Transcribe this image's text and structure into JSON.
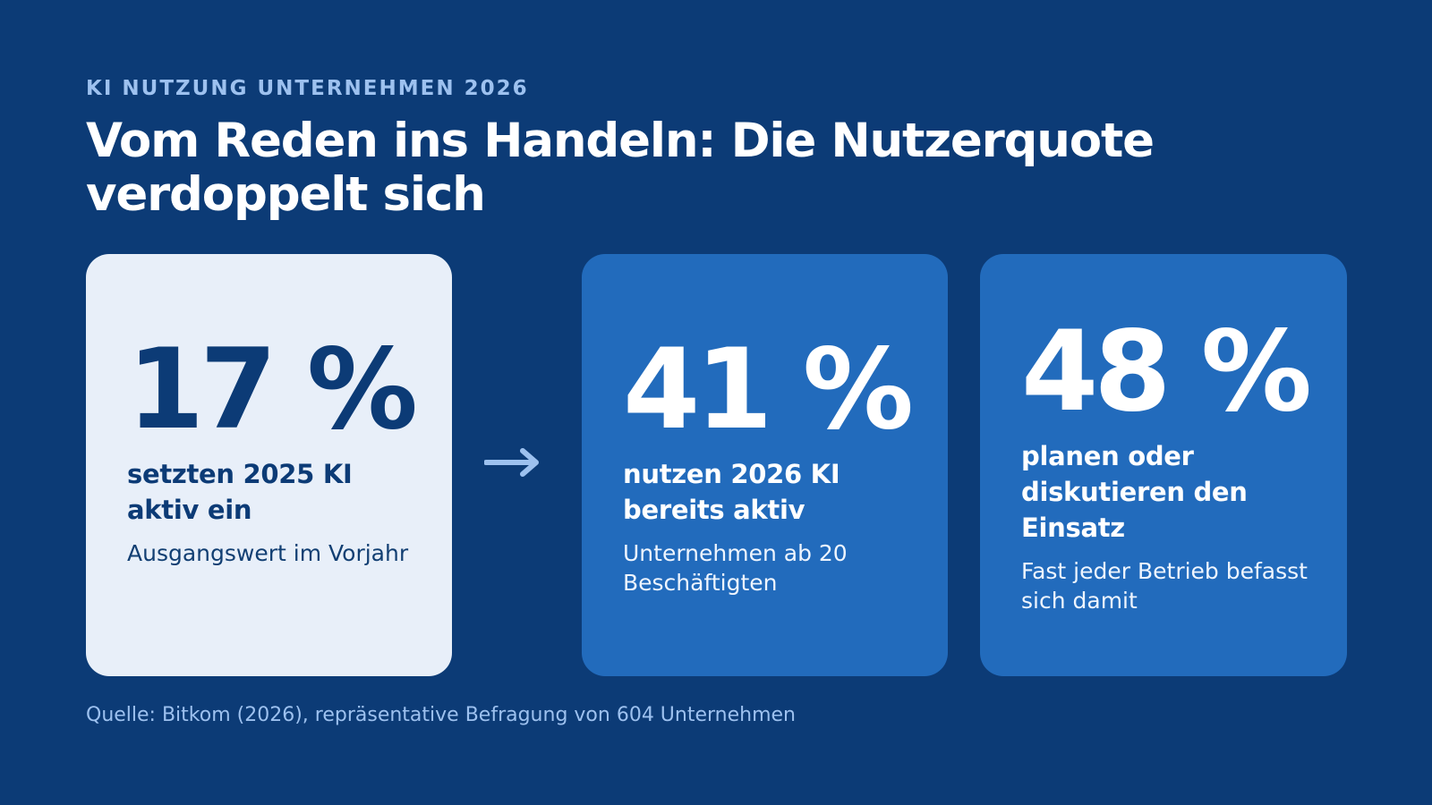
{
  "header": {
    "eyebrow": "KI NUTZUNG UNTERNEHMEN 2026",
    "title_line_1": "Vom Reden ins Handeln: Die Nutzerquote",
    "title_line_2": "verdoppelt sich"
  },
  "cards": [
    {
      "value": "17 %",
      "label": "setzten 2025 KI aktiv ein",
      "note": "Ausgangswert im Vorjahr"
    },
    {
      "value": "41 %",
      "label": "nutzen 2026 KI bereits aktiv",
      "note": "Unternehmen ab 20 Beschäftigten"
    },
    {
      "value": "48 %",
      "label": "planen oder diskutieren den Einsatz",
      "note": "Fast jeder Betrieb befasst sich damit"
    }
  ],
  "source": "Quelle: Bitkom (2026), repräsentative Befragung von 604 Unternehmen",
  "colors": {
    "background": "#0c3b76",
    "accent": "#9dc1ef",
    "light_card": "#e8eff9",
    "blue_card": "#226bbc",
    "white": "#ffffff"
  },
  "icons": {
    "transition": "right-arrow-icon"
  }
}
